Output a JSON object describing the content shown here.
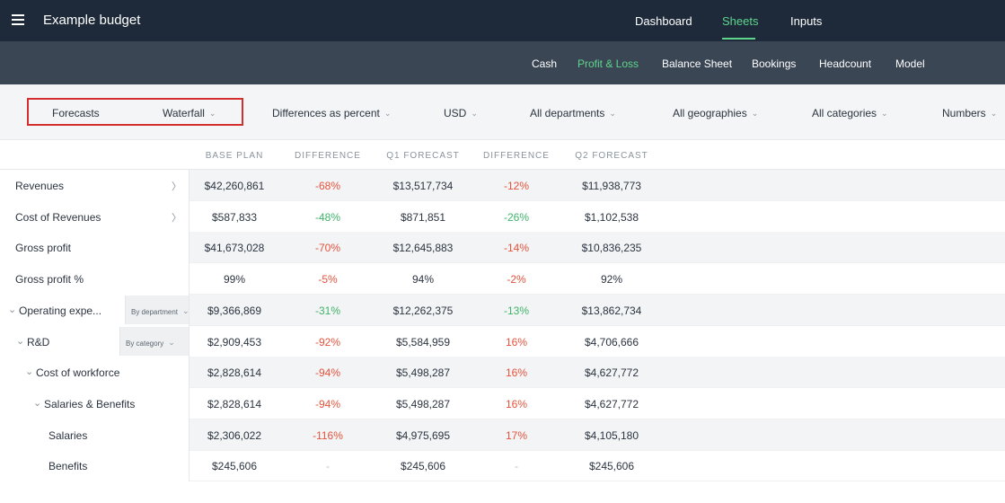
{
  "app": {
    "title": "Example budget"
  },
  "top_nav": [
    {
      "label": "Dashboard"
    },
    {
      "label": "Sheets"
    },
    {
      "label": "Inputs"
    }
  ],
  "sub_nav": [
    {
      "label": "Cash"
    },
    {
      "label": "Profit & Loss"
    },
    {
      "label": "Balance Sheet"
    },
    {
      "label": "Bookings"
    },
    {
      "label": "Headcount"
    },
    {
      "label": "Model"
    }
  ],
  "filters": {
    "forecasts": "Forecasts",
    "waterfall": "Waterfall",
    "differences": "Differences as percent",
    "currency": "USD",
    "departments": "All departments",
    "geographies": "All geographies",
    "categories": "All categories",
    "numbers": "Numbers"
  },
  "table": {
    "columns": [
      "BASE PLAN",
      "DIFFERENCE",
      "Q1 FORECAST",
      "DIFFERENCE",
      "Q2 FORECAST"
    ],
    "rows": [
      {
        "label": "Revenues",
        "cells": [
          "$42,260,861",
          "-68%",
          "$13,517,734",
          "-12%",
          "$11,938,773"
        ]
      },
      {
        "label": "Cost of Revenues",
        "cells": [
          "$587,833",
          "-48%",
          "$871,851",
          "-26%",
          "$1,102,538"
        ]
      },
      {
        "label": "Gross profit",
        "cells": [
          "$41,673,028",
          "-70%",
          "$12,645,883",
          "-14%",
          "$10,836,235"
        ]
      },
      {
        "label": "Gross profit %",
        "cells": [
          "99%",
          "-5%",
          "94%",
          "-2%",
          "92%"
        ]
      },
      {
        "label": "Operating expe...",
        "dropdown": "By department",
        "cells": [
          "$9,366,869",
          "-31%",
          "$12,262,375",
          "-13%",
          "$13,862,734"
        ]
      },
      {
        "label": "R&D",
        "dropdown": "By category",
        "cells": [
          "$2,909,453",
          "-92%",
          "$5,584,959",
          "16%",
          "$4,706,666"
        ]
      },
      {
        "label": "Cost of workforce",
        "cells": [
          "$2,828,614",
          "-94%",
          "$5,498,287",
          "16%",
          "$4,627,772"
        ]
      },
      {
        "label": "Salaries & Benefits",
        "cells": [
          "$2,828,614",
          "-94%",
          "$5,498,287",
          "16%",
          "$4,627,772"
        ]
      },
      {
        "label": "Salaries",
        "cells": [
          "$2,306,022",
          "-116%",
          "$4,975,695",
          "17%",
          "$4,105,180"
        ]
      },
      {
        "label": "Benefits",
        "cells": [
          "$245,606",
          "-",
          "$245,606",
          "-",
          "$245,606"
        ]
      }
    ]
  },
  "colors": {
    "topbar": "#1e2a3a",
    "subnav": "#3b4655",
    "accent_green": "#5fd58b",
    "negative": "#e5533d",
    "positive": "#3fb36b",
    "highlight_box": "#d32f2f"
  },
  "icons": {
    "menu": "hamburger-menu-icon",
    "chevron": "chevron-down-icon",
    "expand": "chevron-right-icon",
    "collapse": "chevron-down-icon"
  }
}
